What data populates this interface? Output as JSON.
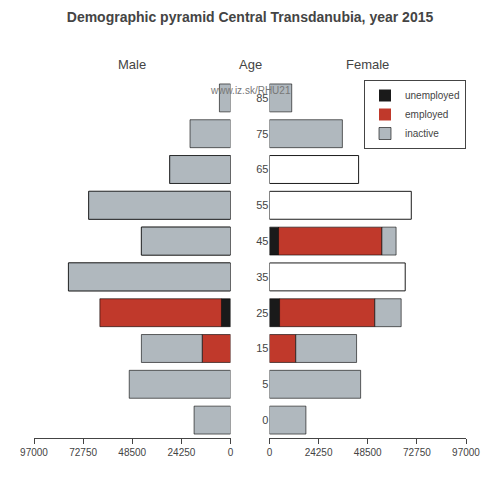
{
  "title": "Demographic pyramid Central Transdanubia, year 2015",
  "annotations": [
    "www.iz.sk/RHU21"
  ],
  "chart_data": [
    {
      "type": "bar",
      "orientation": "horizontal",
      "stacked": true,
      "grid": false,
      "title": "Male",
      "tick_labels": "x",
      "categories": [
        85,
        75,
        65,
        55,
        45,
        35,
        25,
        15,
        5,
        0
      ],
      "xlim": [
        97000,
        0
      ],
      "xticks": [
        97000,
        72750,
        48500,
        24250,
        0
      ],
      "series": [
        {
          "type": "outline",
          "color": "#ffffff",
          "values": [
            0,
            0,
            30000,
            70000,
            44000,
            80000,
            0,
            0,
            0,
            0
          ]
        },
        {
          "name": "unemployed",
          "color": "#1a1a1a",
          "values": [
            0,
            0,
            0,
            0,
            0,
            0,
            4500,
            0,
            0,
            0
          ]
        },
        {
          "name": "employed",
          "color": "#c0392b",
          "values": [
            0,
            0,
            0,
            0,
            0,
            0,
            60000,
            14000,
            0,
            0
          ]
        },
        {
          "name": "inactive",
          "color": "#b0b8be",
          "values": [
            5500,
            20000,
            30000,
            70000,
            44000,
            80000,
            0,
            30000,
            50000,
            18000
          ]
        }
      ]
    },
    {
      "type": "bar",
      "orientation": "horizontal",
      "stacked": true,
      "grid": false,
      "title": "Female",
      "ylabel": "Age",
      "legend": "upper right",
      "categories": [
        85,
        75,
        65,
        55,
        45,
        35,
        25,
        15,
        5,
        0
      ],
      "xlim": [
        0,
        97000
      ],
      "xticks": [
        0,
        24250,
        48500,
        72750,
        97000
      ],
      "series": [
        {
          "type": "outline",
          "color": "#ffffff",
          "values": [
            0,
            0,
            44000,
            70000,
            0,
            67000,
            0,
            0,
            0,
            0
          ]
        },
        {
          "name": "unemployed",
          "color": "#1a1a1a",
          "values": [
            0,
            0,
            0,
            0,
            4500,
            0,
            5000,
            0,
            0,
            0
          ]
        },
        {
          "name": "employed",
          "color": "#c0392b",
          "values": [
            0,
            0,
            0,
            0,
            51000,
            0,
            47000,
            13000,
            0,
            0
          ]
        },
        {
          "name": "inactive",
          "color": "#b0b8be",
          "values": [
            11000,
            36000,
            0,
            0,
            7000,
            0,
            13000,
            30000,
            45000,
            18000
          ]
        }
      ]
    }
  ]
}
